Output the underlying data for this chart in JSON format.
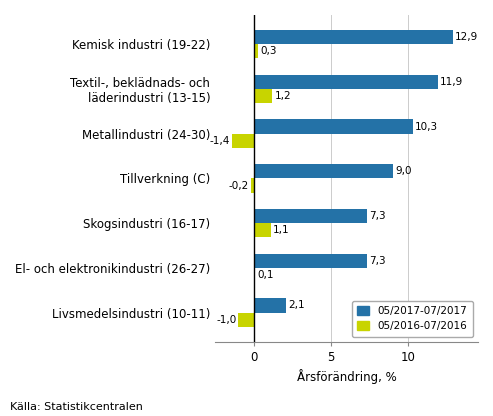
{
  "categories": [
    "Kemisk industri (19-22)",
    "Textil-, beklädnads- och\nläderindustri (13-15)",
    "Metallindustri (24-30)",
    "Tillverkning (C)",
    "Skogsindustri (16-17)",
    "El- och elektronikindustri (26-27)",
    "Livsmedelsindustri (10-11)"
  ],
  "series1_values": [
    12.9,
    11.9,
    10.3,
    9.0,
    7.3,
    7.3,
    2.1
  ],
  "series2_values": [
    0.3,
    1.2,
    -1.4,
    -0.2,
    1.1,
    0.1,
    -1.0
  ],
  "series1_color": "#2472a7",
  "series2_color": "#c8d400",
  "series1_label": "05/2017-07/2017",
  "series2_label": "05/2016-07/2016",
  "xlabel": "Årsförändring, %",
  "xlim": [
    -2.5,
    14.5
  ],
  "xticks": [
    0,
    5,
    10
  ],
  "source_text": "Källa: Statistikcentralen",
  "bar_height": 0.32,
  "fontsize_labels": 8.5,
  "fontsize_values": 7.5,
  "fontsize_source": 8.0,
  "fontsize_legend": 7.5
}
